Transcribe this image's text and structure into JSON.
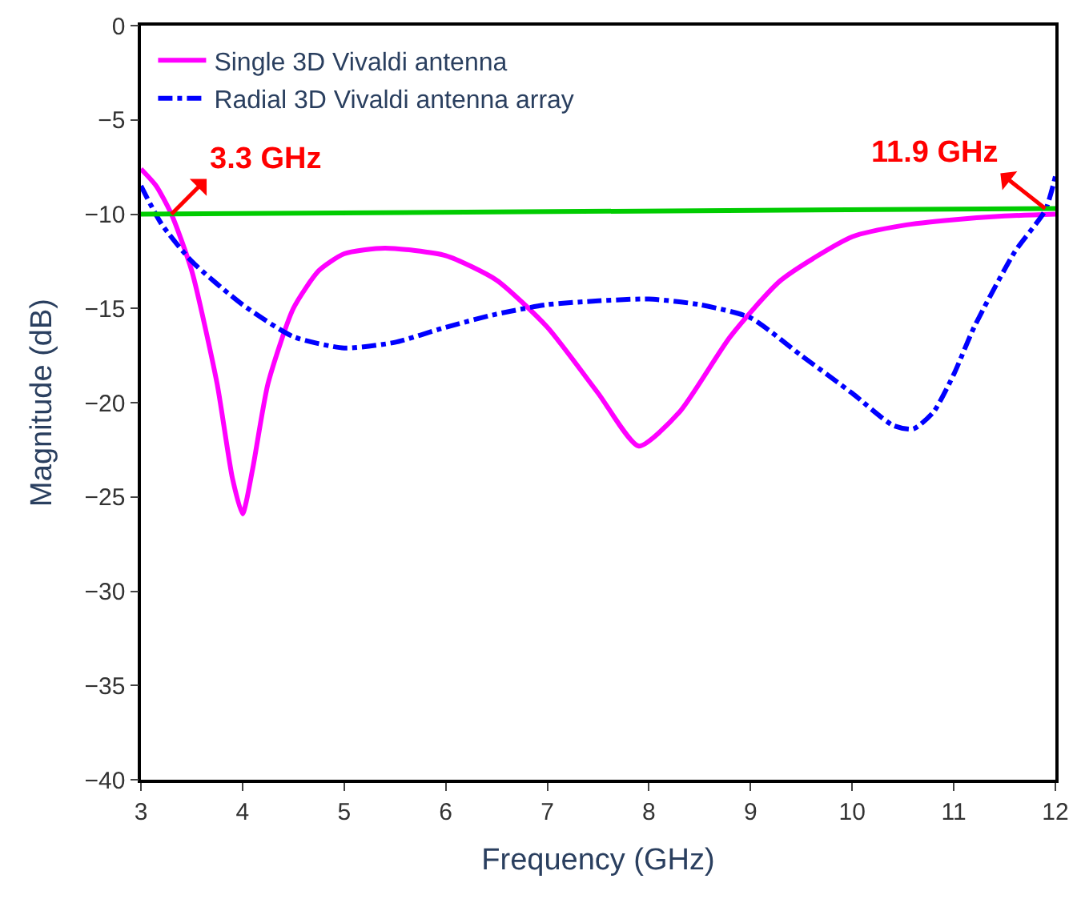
{
  "chart_data": {
    "type": "line",
    "xlabel": "Frequency (GHz)",
    "ylabel": "Magnitude (dB)",
    "xlim": [
      3,
      12
    ],
    "xticks": [
      3,
      4,
      5,
      6,
      7,
      8,
      9,
      10,
      11,
      12
    ],
    "ylim": [
      -40,
      0
    ],
    "yticks": [
      0,
      -5,
      -10,
      -15,
      -20,
      -25,
      -30,
      -35,
      -40
    ],
    "legend": "top left",
    "series": [
      {
        "name": "Single 3D Vivaldi antenna",
        "color": "#ff00ff",
        "line_style": "solid",
        "x": [
          3,
          3.15,
          3.3,
          3.5,
          3.75,
          3.9,
          4.0,
          4.1,
          4.25,
          4.5,
          4.75,
          5.0,
          5.4,
          6.0,
          6.5,
          7.0,
          7.5,
          7.9,
          8.3,
          8.8,
          9.3,
          10.0,
          10.5,
          11.0,
          11.5,
          12.0
        ],
        "values": [
          -7.6,
          -8.5,
          -10.0,
          -13.0,
          -19.0,
          -24.0,
          -25.9,
          -23.5,
          -19.0,
          -15.0,
          -13.0,
          -12.1,
          -11.8,
          -12.2,
          -13.5,
          -16.0,
          -19.5,
          -22.3,
          -20.5,
          -16.5,
          -13.5,
          -11.2,
          -10.6,
          -10.3,
          -10.1,
          -10.0
        ]
      },
      {
        "name": "Radial 3D Vivaldi antenna array",
        "color": "#0000ff",
        "line_style": "dashed",
        "x": [
          3,
          3.2,
          3.5,
          4.0,
          4.5,
          5.0,
          5.5,
          6.0,
          6.5,
          7.0,
          7.5,
          8.0,
          8.5,
          9.0,
          9.5,
          10.0,
          10.4,
          10.6,
          10.8,
          11.0,
          11.2,
          11.6,
          11.9,
          12.0
        ],
        "values": [
          -8.5,
          -10.5,
          -12.5,
          -14.8,
          -16.5,
          -17.1,
          -16.8,
          -16.0,
          -15.3,
          -14.8,
          -14.6,
          -14.5,
          -14.8,
          -15.5,
          -17.5,
          -19.5,
          -21.2,
          -21.4,
          -20.5,
          -18.5,
          -16.0,
          -12.0,
          -9.8,
          -8.0
        ]
      },
      {
        "color": "#00cc00",
        "line_style": "solid",
        "x": [
          3,
          12
        ],
        "values": [
          -10.0,
          -9.7
        ]
      }
    ],
    "annotations": [
      {
        "text": "3.3 GHz",
        "x": 3.3,
        "y": -10.0
      },
      {
        "text": "11.9 GHz",
        "x": 11.9,
        "y": -9.7
      }
    ]
  }
}
